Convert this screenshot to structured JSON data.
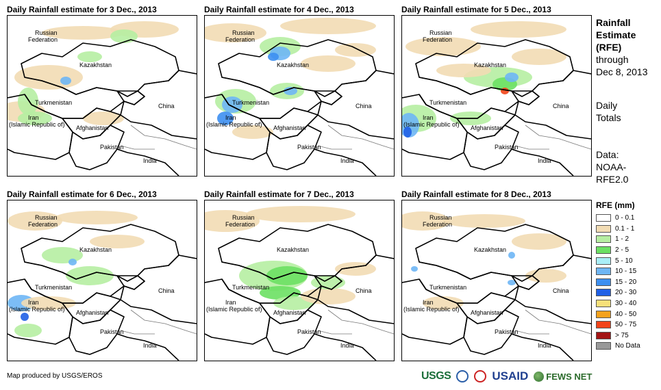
{
  "panels": [
    {
      "title": "Daily Rainfall estimate for 3 Dec., 2013"
    },
    {
      "title": "Daily Rainfall estimate for 4 Dec., 2013"
    },
    {
      "title": "Daily Rainfall estimate for 5 Dec., 2013"
    },
    {
      "title": "Daily Rainfall estimate for 6 Dec., 2013"
    },
    {
      "title": "Daily Rainfall estimate for 7 Dec., 2013"
    },
    {
      "title": "Daily Rainfall estimate for 8 Dec., 2013"
    }
  ],
  "map_labels": {
    "russia_1": "Russian",
    "russia_2": "Federation",
    "kazakhstan": "Kazakhstan",
    "turkmenistan": "Turkmenistan",
    "iran_1": "Iran",
    "iran_2": "(Islamic Republic of)",
    "afghanistan": "Afghanistan",
    "pakistan": "Pakistan",
    "india": "India",
    "china": "China"
  },
  "side_info": {
    "heading_1": "Rainfall",
    "heading_2": "Estimate",
    "heading_3": "(RFE)",
    "through": "through",
    "date": "Dec 8, 2013",
    "daily_1": "Daily",
    "daily_2": "Totals",
    "data_1": "Data:",
    "data_2": "NOAA-",
    "data_3": "RFE2.0"
  },
  "legend": {
    "title": "RFE (mm)",
    "items": [
      {
        "label": "0 - 0.1",
        "color": "#ffffff"
      },
      {
        "label": "0.1 - 1",
        "color": "#f2dcb4"
      },
      {
        "label": "1 - 2",
        "color": "#b6eea2"
      },
      {
        "label": "2 - 5",
        "color": "#6be063"
      },
      {
        "label": "5 - 10",
        "color": "#a9eef7"
      },
      {
        "label": "10 - 15",
        "color": "#6eb6f5"
      },
      {
        "label": "15 - 20",
        "color": "#3d8ff1"
      },
      {
        "label": "20 - 30",
        "color": "#1f5fe6"
      },
      {
        "label": "30 - 40",
        "color": "#f7e07a"
      },
      {
        "label": "40 - 50",
        "color": "#f5a21d"
      },
      {
        "label": "50 - 75",
        "color": "#f2441a"
      },
      {
        "label": "> 75",
        "color": "#a31515"
      },
      {
        "label": "No Data",
        "color": "#999999"
      }
    ]
  },
  "footer": {
    "credit": "Map produced by USGS/EROS"
  },
  "logos": {
    "usgs": "USGS",
    "usaid": "USAID",
    "fews": "FEWS NET"
  }
}
